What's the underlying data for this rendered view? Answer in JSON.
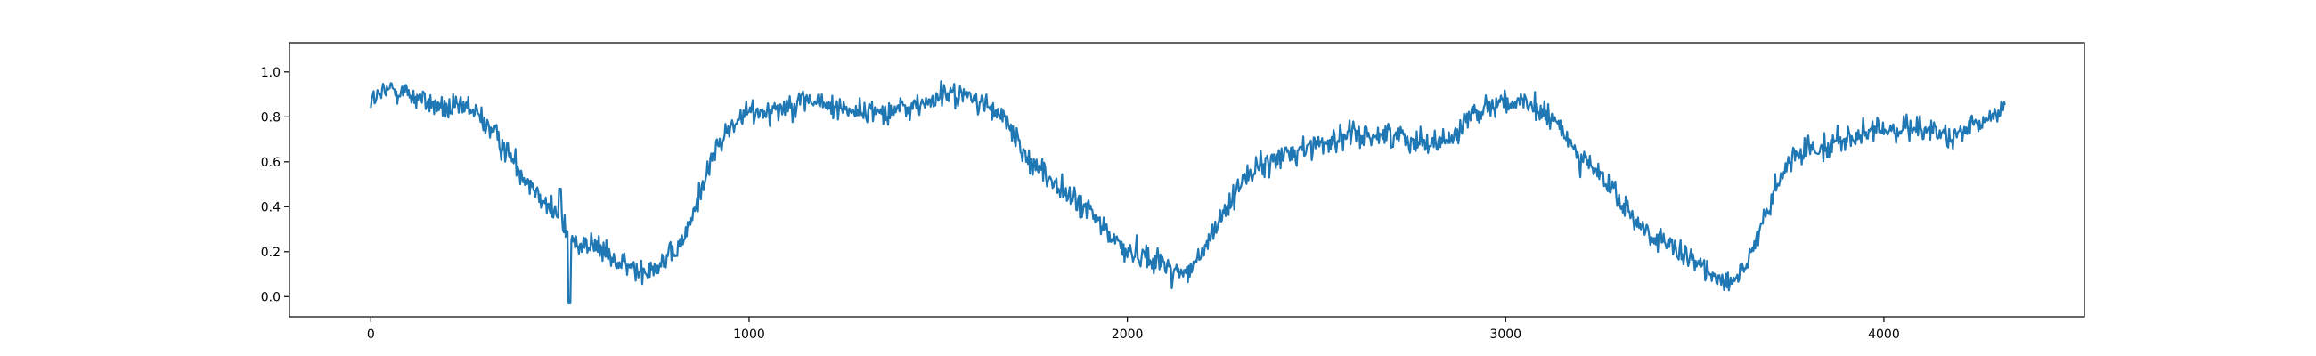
{
  "chart_data": {
    "type": "line",
    "title": "",
    "xlabel": "",
    "ylabel": "",
    "xlim": [
      -215,
      4530
    ],
    "ylim": [
      -0.09,
      1.13
    ],
    "xticks": [
      0,
      1000,
      2000,
      3000,
      4000
    ],
    "yticks": [
      0.0,
      0.2,
      0.4,
      0.6,
      0.8,
      1.0
    ],
    "xtick_labels": [
      "0",
      "1000",
      "2000",
      "3000",
      "4000"
    ],
    "ytick_labels": [
      "0.0",
      "0.2",
      "0.4",
      "0.6",
      "0.8",
      "1.0"
    ],
    "grid": false,
    "legend": "none",
    "line_color": "#1f77b4",
    "series": [
      {
        "x": [
          0,
          60,
          130,
          200,
          260,
          300,
          350,
          400,
          450,
          480,
          510,
          530,
          600,
          650,
          700,
          740,
          800,
          840,
          880,
          920,
          960,
          1000,
          1080,
          1150,
          1200,
          1260,
          1300,
          1380,
          1450,
          1520,
          1560,
          1620,
          1680,
          1720,
          1780,
          1840,
          1900,
          1950,
          2000,
          2060,
          2120,
          2160,
          2200,
          2240,
          2300,
          2400,
          2500,
          2600,
          2700,
          2800,
          2860,
          2900,
          2960,
          3000,
          3050,
          3100,
          3150,
          3200,
          3260,
          3320,
          3380,
          3450,
          3500,
          3560,
          3600,
          3650,
          3700,
          3750,
          3800,
          3850,
          3900,
          4000,
          4100,
          4180,
          4250,
          4320
        ],
        "y": [
          0.87,
          0.93,
          0.88,
          0.83,
          0.84,
          0.78,
          0.67,
          0.55,
          0.45,
          0.38,
          0.32,
          0.25,
          0.22,
          0.15,
          0.12,
          0.13,
          0.18,
          0.3,
          0.52,
          0.68,
          0.77,
          0.82,
          0.84,
          0.88,
          0.85,
          0.84,
          0.82,
          0.83,
          0.85,
          0.9,
          0.9,
          0.86,
          0.78,
          0.65,
          0.55,
          0.45,
          0.38,
          0.28,
          0.2,
          0.18,
          0.12,
          0.1,
          0.2,
          0.32,
          0.52,
          0.62,
          0.68,
          0.72,
          0.72,
          0.69,
          0.7,
          0.8,
          0.86,
          0.87,
          0.85,
          0.82,
          0.74,
          0.62,
          0.52,
          0.38,
          0.28,
          0.2,
          0.15,
          0.09,
          0.07,
          0.18,
          0.42,
          0.6,
          0.66,
          0.68,
          0.7,
          0.74,
          0.76,
          0.7,
          0.76,
          0.85
        ]
      }
    ]
  }
}
